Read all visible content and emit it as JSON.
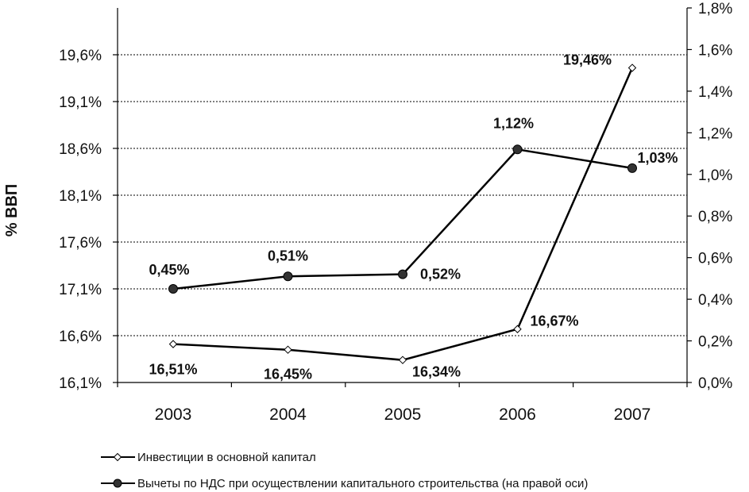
{
  "chart_data": {
    "type": "line",
    "categories": [
      "2003",
      "2004",
      "2005",
      "2006",
      "2007"
    ],
    "ylabel": "% ВВП",
    "y_left": {
      "range": [
        16.1,
        20.1
      ],
      "ticks": [
        16.1,
        16.6,
        17.1,
        17.6,
        18.1,
        18.6,
        19.1,
        19.6
      ],
      "tick_labels": [
        "16,1%",
        "16,6%",
        "17,1%",
        "17,6%",
        "18,1%",
        "18,6%",
        "19,1%",
        "19,6%"
      ]
    },
    "y_right": {
      "range": [
        0.0,
        1.8
      ],
      "ticks": [
        0.0,
        0.2,
        0.4,
        0.6,
        0.8,
        1.0,
        1.2,
        1.4,
        1.6,
        1.8
      ],
      "tick_labels": [
        "0,0%",
        "0,2%",
        "0,4%",
        "0,6%",
        "0,8%",
        "1,0%",
        "1,2%",
        "1,4%",
        "1,6%",
        "1,8%"
      ]
    },
    "grid": "horizontal dashed",
    "legend_position": "bottom",
    "series": [
      {
        "name": "Инвестиции в основной капитал",
        "axis": "left",
        "marker": "diamond-open",
        "values": [
          16.51,
          16.45,
          16.34,
          16.67,
          19.46
        ],
        "labels": [
          "16,51%",
          "16,45%",
          "16,34%",
          "16,67%",
          "19,46%"
        ]
      },
      {
        "name": "Вычеты по НДС при осуществлении капитального строительства (на правой оси)",
        "axis": "right",
        "marker": "circle-filled",
        "values": [
          0.45,
          0.51,
          0.52,
          1.12,
          1.03
        ],
        "labels": [
          "0,45%",
          "0,51%",
          "0,52%",
          "1,12%",
          "1,03%"
        ]
      }
    ]
  }
}
